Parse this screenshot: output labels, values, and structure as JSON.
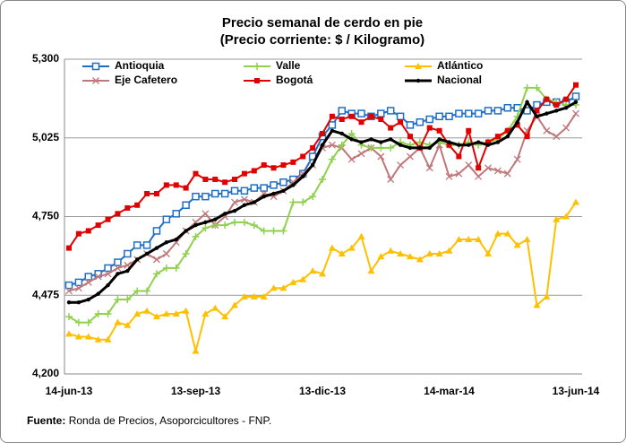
{
  "chart_data": {
    "type": "line",
    "title": "Precio semanal de cerdo en pie",
    "subtitle": "(Precio corriente: $ / Kilogramo)",
    "source_label": "Fuente:",
    "source": "Ronda de Precios, Asoporcicultores  - FNP.",
    "categories": [
      "14-jun-13",
      null,
      null,
      null,
      null,
      null,
      null,
      null,
      null,
      null,
      null,
      null,
      null,
      "13-sep-13",
      null,
      null,
      null,
      null,
      null,
      null,
      null,
      null,
      null,
      null,
      null,
      null,
      "13-dic-13",
      null,
      null,
      null,
      null,
      null,
      null,
      null,
      null,
      null,
      null,
      null,
      null,
      "14-mar-14",
      null,
      null,
      null,
      null,
      null,
      null,
      null,
      null,
      null,
      null,
      null,
      null,
      "13-jun-14"
    ],
    "ylim": [
      4200,
      5300
    ],
    "yticks": [
      {
        "value": 4200,
        "label": "4,200"
      },
      {
        "value": 4475,
        "label": "4,475"
      },
      {
        "value": 4750,
        "label": "4,750"
      },
      {
        "value": 5025,
        "label": "5,025"
      },
      {
        "value": 5300,
        "label": "5,300"
      }
    ],
    "grid": true,
    "legend": "top-left",
    "series": [
      {
        "name": "Antioquia",
        "color": "#1f6fc5",
        "marker": "square-open",
        "values": [
          4510,
          4520,
          4540,
          4550,
          4570,
          4590,
          4620,
          4650,
          4650,
          4700,
          4740,
          4760,
          4790,
          4820,
          4820,
          4830,
          4830,
          4840,
          4840,
          4850,
          4850,
          4860,
          4870,
          4880,
          4900,
          4960,
          5030,
          5070,
          5120,
          5110,
          5110,
          5100,
          5110,
          5120,
          5100,
          5070,
          5080,
          5090,
          5100,
          5100,
          5110,
          5110,
          5110,
          5120,
          5120,
          5130,
          5130,
          5120,
          5140,
          5150,
          5150,
          5150,
          5170
        ]
      },
      {
        "name": "Eje Cafetero",
        "color": "#c0777a",
        "marker": "x",
        "values": [
          4490,
          4500,
          4520,
          4540,
          4550,
          4570,
          4580,
          4600,
          4620,
          4600,
          4620,
          4660,
          4700,
          4730,
          4760,
          4720,
          4750,
          4800,
          4810,
          4800,
          4830,
          4820,
          4840,
          4870,
          4900,
          4930,
          4990,
          5000,
          4990,
          4950,
          4970,
          4990,
          4960,
          4880,
          4930,
          4960,
          4990,
          4920,
          5000,
          4890,
          4900,
          4930,
          4890,
          4920,
          4910,
          4900,
          4950,
          5050,
          5100,
          5050,
          5030,
          5060,
          5110
        ]
      },
      {
        "name": "Valle",
        "color": "#8fd14f",
        "marker": "plus",
        "values": [
          4400,
          4380,
          4380,
          4410,
          4410,
          4460,
          4460,
          4490,
          4490,
          4550,
          4570,
          4570,
          4620,
          4680,
          4710,
          4720,
          4720,
          4730,
          4730,
          4720,
          4700,
          4700,
          4700,
          4800,
          4800,
          4820,
          4880,
          4950,
          5000,
          5040,
          5000,
          4990,
          4990,
          4990,
          5010,
          5000,
          5010,
          5000,
          5010,
          5000,
          5000,
          5010,
          5000,
          5010,
          5020,
          5050,
          5100,
          5200,
          5200,
          5160,
          5150,
          5140,
          5140
        ]
      },
      {
        "name": "Bogotá",
        "color": "#e00000",
        "marker": "square",
        "values": [
          4640,
          4690,
          4700,
          4720,
          4740,
          4760,
          4780,
          4790,
          4830,
          4830,
          4860,
          4860,
          4850,
          4900,
          4880,
          4880,
          4870,
          4880,
          4900,
          4910,
          4930,
          4920,
          4930,
          4940,
          4960,
          4990,
          5040,
          5100,
          5090,
          5100,
          5080,
          5100,
          5090,
          5060,
          5080,
          5030,
          4990,
          5060,
          5050,
          5000,
          4960,
          5050,
          4920,
          5010,
          5030,
          5050,
          5070,
          5030,
          5120,
          5160,
          5140,
          5160,
          5210
        ]
      },
      {
        "name": "Atlántico",
        "color": "#ffc000",
        "marker": "triangle",
        "values": [
          4340,
          4330,
          4330,
          4320,
          4320,
          4380,
          4370,
          4410,
          4420,
          4400,
          4410,
          4410,
          4420,
          4280,
          4410,
          4430,
          4400,
          4440,
          4470,
          4470,
          4470,
          4500,
          4500,
          4520,
          4530,
          4560,
          4550,
          4640,
          4620,
          4640,
          4680,
          4560,
          4610,
          4630,
          4620,
          4610,
          4600,
          4620,
          4620,
          4630,
          4670,
          4670,
          4670,
          4620,
          4690,
          4690,
          4650,
          4670,
          4440,
          4470,
          4740,
          4750,
          4800
        ]
      },
      {
        "name": "Nacional",
        "color": "#000000",
        "marker": "dot",
        "values": [
          4450,
          4450,
          4460,
          4480,
          4510,
          4550,
          4560,
          4600,
          4620,
          4640,
          4660,
          4670,
          4700,
          4720,
          4730,
          4740,
          4760,
          4770,
          4790,
          4800,
          4820,
          4830,
          4840,
          4860,
          4890,
          4930,
          5000,
          5050,
          5040,
          5020,
          5010,
          5020,
          5010,
          5020,
          5000,
          4990,
          4990,
          4990,
          5020,
          5010,
          5000,
          5000,
          5010,
          5000,
          5010,
          5030,
          5080,
          5150,
          5100,
          5110,
          5120,
          5130,
          5150
        ]
      }
    ]
  }
}
